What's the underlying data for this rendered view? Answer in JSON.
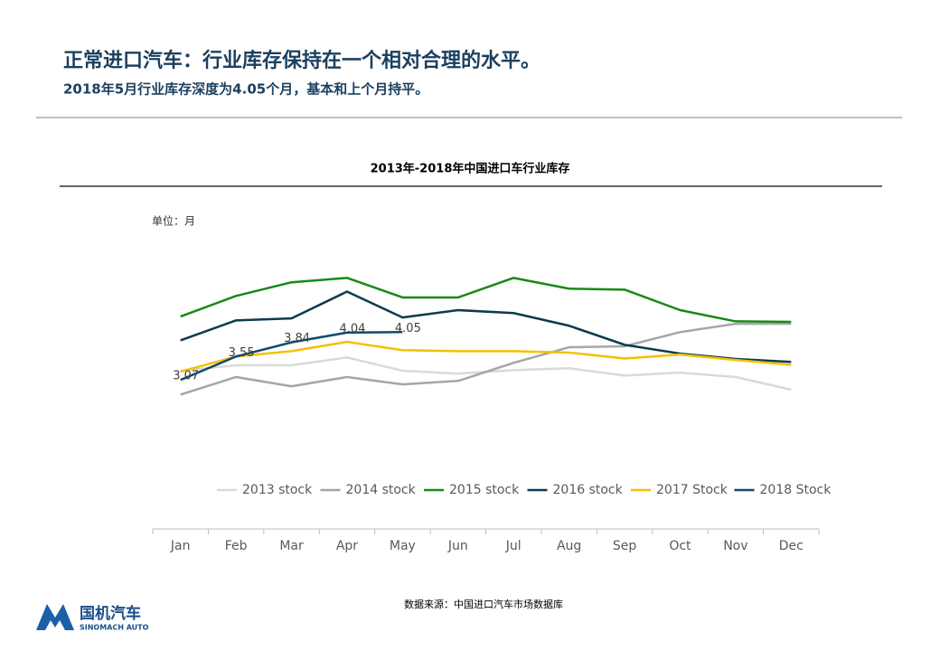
{
  "page": {
    "title": "正常进口汽车：行业库存保持在一个相对合理的水平。",
    "subtitle": "2018年5月行业库存深度为4.05个月，基本和上个月持平。",
    "unit": "单位：月",
    "source": "数据来源：中国进口汽车市场数据库",
    "logo_cn": "国机汽车",
    "logo_en": "SINOMACH AUTO"
  },
  "chart_data": {
    "type": "line",
    "title": "2013年-2018年中国进口车行业库存",
    "categories": [
      "Jan",
      "Feb",
      "Mar",
      "Apr",
      "May",
      "Jun",
      "Jul",
      "Aug",
      "Sep",
      "Oct",
      "Nov",
      "Dec"
    ],
    "ylim": [
      2,
      6
    ],
    "grid": false,
    "legend": "bottom",
    "series": [
      {
        "name": "2013 stock",
        "color": "#d9d9d9",
        "values": [
          3.26,
          3.37,
          3.37,
          3.53,
          3.26,
          3.2,
          3.27,
          3.31,
          3.16,
          3.22,
          3.13,
          2.87
        ]
      },
      {
        "name": "2014 stock",
        "color": "#a6a6a6",
        "values": [
          2.77,
          3.13,
          2.94,
          3.13,
          2.98,
          3.05,
          3.42,
          3.74,
          3.76,
          4.05,
          4.22,
          4.22
        ]
      },
      {
        "name": "2015 stock",
        "color": "#178a17",
        "values": [
          4.37,
          4.79,
          5.07,
          5.16,
          4.76,
          4.76,
          5.16,
          4.94,
          4.92,
          4.5,
          4.27,
          4.26
        ]
      },
      {
        "name": "2016 stock",
        "color": "#0d3a4f",
        "values": [
          3.88,
          4.29,
          4.33,
          4.88,
          4.35,
          4.5,
          4.44,
          4.18,
          3.79,
          3.61,
          3.5,
          3.44
        ]
      },
      {
        "name": "2017 Stock",
        "color": "#f5c000",
        "values": [
          3.24,
          3.55,
          3.66,
          3.85,
          3.68,
          3.66,
          3.66,
          3.63,
          3.51,
          3.59,
          3.48,
          3.38
        ]
      },
      {
        "name": "2018 Stock",
        "color": "#0e4b6b",
        "show_values": true,
        "values": [
          3.07,
          3.55,
          3.84,
          4.04,
          4.05,
          null,
          null,
          null,
          null,
          null,
          null,
          null
        ]
      }
    ]
  }
}
